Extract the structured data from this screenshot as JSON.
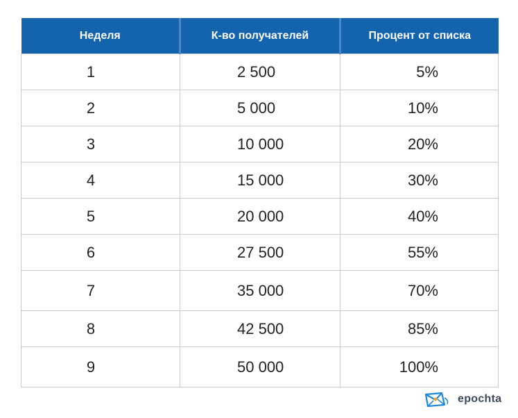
{
  "table": {
    "headers": [
      "Неделя",
      "К-во получателей",
      "Процент от списка"
    ],
    "rows": [
      [
        "1",
        "2 500",
        "5%"
      ],
      [
        "2",
        "5 000",
        "10%"
      ],
      [
        "3",
        "10 000",
        "20%"
      ],
      [
        "4",
        "15 000",
        "30%"
      ],
      [
        "5",
        "20 000",
        "40%"
      ],
      [
        "6",
        "27 500",
        "55%"
      ],
      [
        "7",
        "35 000",
        "70%"
      ],
      [
        "8",
        "42 500",
        "85%"
      ],
      [
        "9",
        "50 000",
        "100%"
      ]
    ]
  },
  "brand": {
    "name": "epochta",
    "icon": "envelope-logo-icon"
  },
  "colors": {
    "header_bg": "#1464ad",
    "header_text": "#ffffff",
    "grid": "#c9c9c9",
    "logo_blue": "#1e88d8",
    "logo_orange": "#f5a623"
  }
}
